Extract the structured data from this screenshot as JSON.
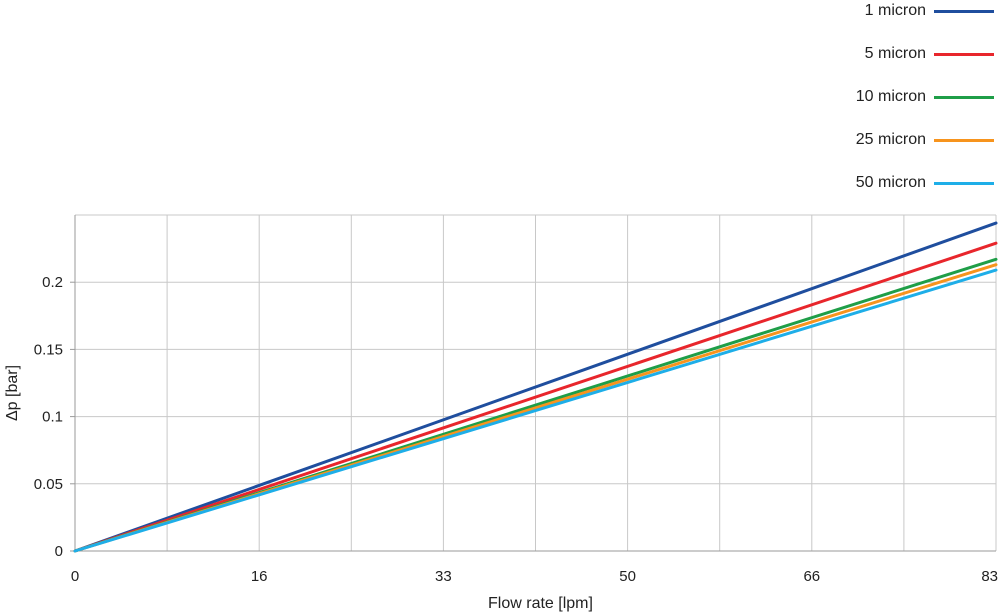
{
  "chart_data": {
    "type": "line",
    "xlabel": "Flow rate [lpm]",
    "ylabel": "Δp [bar]",
    "xlim": [
      0,
      83
    ],
    "ylim": [
      0,
      0.25
    ],
    "x_ticks": [
      "0",
      "16",
      "33",
      "50",
      "66",
      "83"
    ],
    "y_ticks": [
      "0",
      "0.05",
      "0.1",
      "0.15",
      "0.2"
    ],
    "y_tick_values": [
      0,
      0.05,
      0.1,
      0.15,
      0.2
    ],
    "grid": true,
    "legend_position": "top-right",
    "series": [
      {
        "name": "1 micron",
        "color": "#1f4e9e",
        "x": [
          0,
          83
        ],
        "y": [
          0,
          0.244
        ]
      },
      {
        "name": "5 micron",
        "color": "#e8262c",
        "x": [
          0,
          83
        ],
        "y": [
          0,
          0.229
        ]
      },
      {
        "name": "10 micron",
        "color": "#1f9e48",
        "x": [
          0,
          83
        ],
        "y": [
          0,
          0.217
        ]
      },
      {
        "name": "25 micron",
        "color": "#f7941d",
        "x": [
          0,
          83
        ],
        "y": [
          0,
          0.213
        ]
      },
      {
        "name": "50 micron",
        "color": "#1eaee8",
        "x": [
          0,
          83
        ],
        "y": [
          0,
          0.209
        ]
      }
    ]
  }
}
